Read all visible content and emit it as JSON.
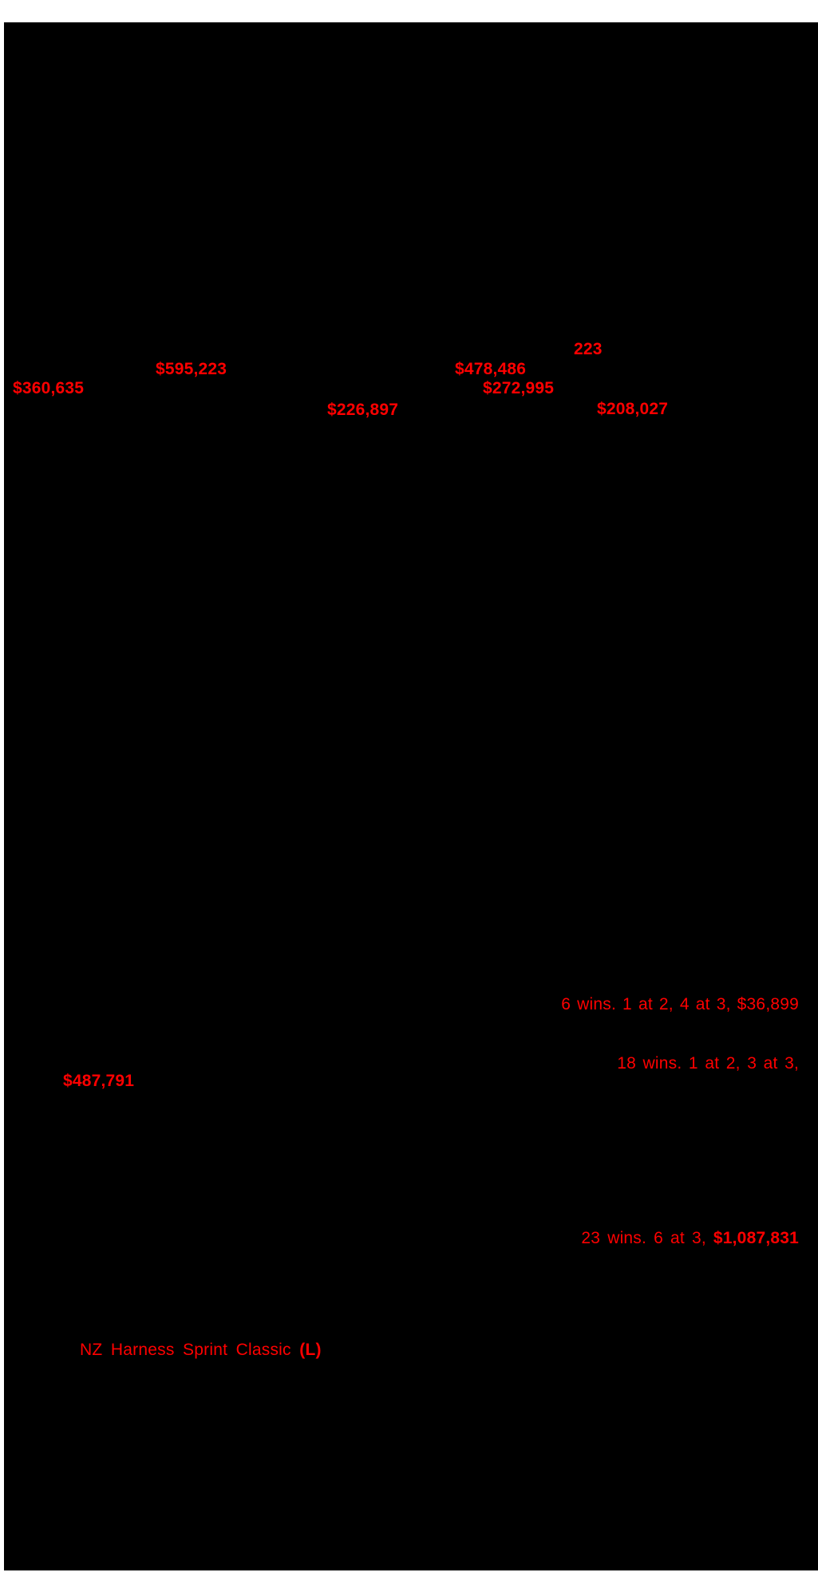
{
  "page": {
    "background_color": "#ffffff",
    "panel_color": "#000000",
    "highlight_color": "#ff0000"
  },
  "prize_amounts": {
    "fragment_223": "223",
    "amount_595223": "$595,223",
    "amount_478486": "$478,486",
    "amount_360635": "$360,635",
    "amount_272995": "$272,995",
    "amount_226897": "$226,897",
    "amount_208027": "$208,027"
  },
  "race_records": {
    "record_6_wins": "6 wins. 1 at 2, 4 at 3, $36,899",
    "record_18_wins": "18 wins. 1 at 2, 3 at 3,",
    "record_18_wins_amount": "$487,791",
    "record_23_wins_prefix": "23 wins. 6 at 3, ",
    "record_23_wins_amount": "$1,087,831"
  },
  "stakes_race": {
    "name": "NZ Harness Sprint Classic ",
    "grade": "(L)"
  }
}
